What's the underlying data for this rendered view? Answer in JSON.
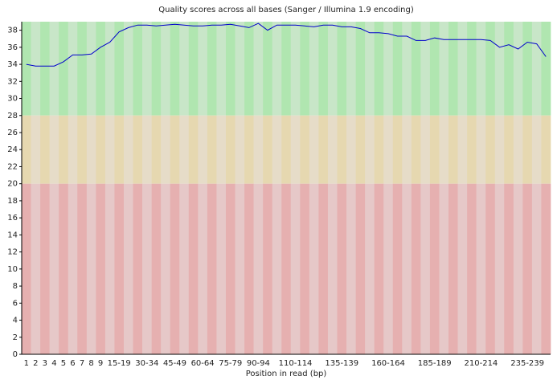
{
  "chart_data": {
    "type": "line",
    "title": "Quality scores across all bases (Sanger / Illumina 1.9 encoding)",
    "x_label": "Position in read (bp)",
    "categories": [
      "1",
      "2",
      "3",
      "4",
      "5",
      "6",
      "7",
      "8",
      "9",
      null,
      "15-19",
      null,
      null,
      "30-34",
      null,
      null,
      "45-49",
      null,
      null,
      "60-64",
      null,
      null,
      "75-79",
      null,
      null,
      "90-94",
      null,
      null,
      null,
      "110-114",
      null,
      null,
      null,
      null,
      "135-139",
      null,
      null,
      null,
      null,
      "160-164",
      null,
      null,
      null,
      null,
      "185-189",
      null,
      null,
      null,
      null,
      "210-214",
      null,
      null,
      null,
      null,
      "235-239",
      null,
      null
    ],
    "series": [
      {
        "color": "#0000cc",
        "values": [
          34.0,
          33.8,
          33.8,
          33.8,
          34.3,
          35.1,
          35.1,
          35.2,
          36.0,
          36.6,
          37.8,
          38.3,
          38.6,
          38.6,
          38.5,
          38.6,
          38.7,
          38.6,
          38.5,
          38.5,
          38.6,
          38.6,
          38.7,
          38.5,
          38.3,
          38.8,
          38.0,
          38.6,
          38.6,
          38.6,
          38.5,
          38.4,
          38.6,
          38.6,
          38.4,
          38.4,
          38.2,
          37.7,
          37.7,
          37.6,
          37.3,
          37.3,
          36.8,
          36.8,
          37.1,
          36.9,
          36.9,
          36.9,
          36.9,
          36.9,
          36.8,
          36.0,
          36.3,
          35.8,
          36.6,
          36.4,
          34.9
        ]
      }
    ],
    "ylim": [
      0,
      39
    ],
    "yticks": [
      0,
      2,
      4,
      6,
      8,
      10,
      12,
      14,
      16,
      18,
      20,
      22,
      24,
      26,
      28,
      30,
      32,
      34,
      36,
      38
    ],
    "zones": [
      {
        "from": 28,
        "to": 39,
        "colors": [
          "#b0e6b0",
          "#c8e6c8"
        ]
      },
      {
        "from": 20,
        "to": 28,
        "colors": [
          "#e6d8b0",
          "#e6dcc8"
        ]
      },
      {
        "from": 0,
        "to": 20,
        "colors": [
          "#e6b0b0",
          "#e6c8c8"
        ]
      }
    ]
  }
}
